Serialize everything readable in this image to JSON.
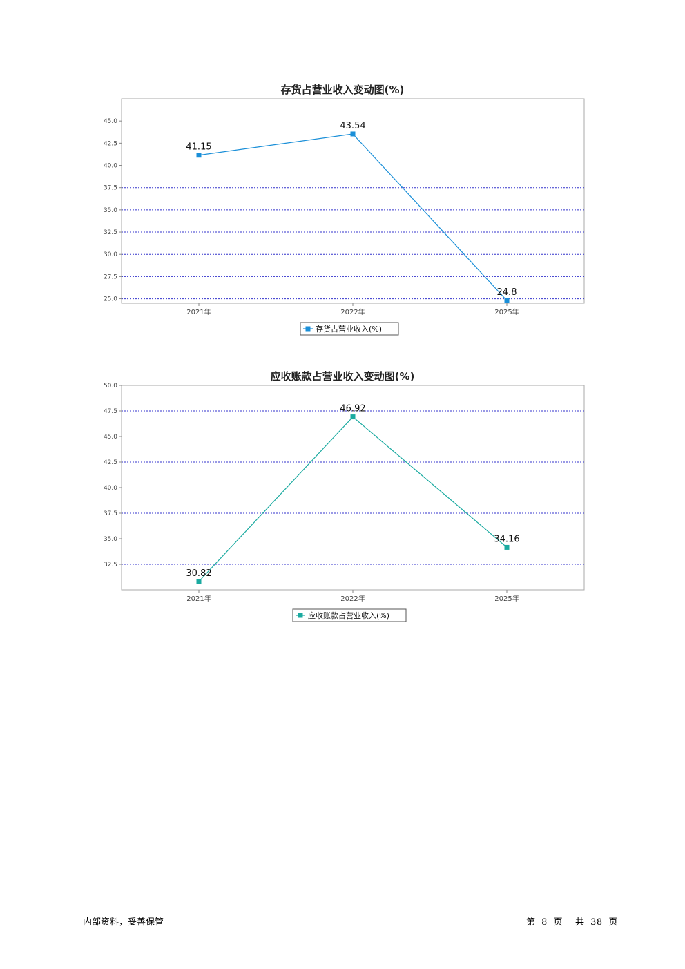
{
  "chart_data": [
    {
      "type": "line",
      "title": "存货占营业收入变动图(%)",
      "categories": [
        "2021年",
        "2022年",
        "2025年"
      ],
      "series": [
        {
          "name": "存货占营业收入(%)",
          "values": [
            41.15,
            43.54,
            24.8
          ],
          "labels": [
            "41.15",
            "43.54",
            "24.8"
          ],
          "color": "#1a8fd8"
        }
      ],
      "ylim": [
        24.5,
        47.5
      ],
      "yticks": [
        25.0,
        27.5,
        30.0,
        32.5,
        35.0,
        37.5,
        40.0,
        42.5,
        45.0
      ],
      "ytick_labels": [
        "25.0",
        "27.5",
        "30.0",
        "32.5",
        "35.0",
        "37.5",
        "40.0",
        "42.5",
        "45.0"
      ],
      "gridlines": [
        25.0,
        27.5,
        30.0,
        32.5,
        35.0,
        37.5
      ],
      "grid_color": "#3333cc",
      "legend": "bottom-center"
    },
    {
      "type": "line",
      "title": "应收账款占营业收入变动图(%)",
      "categories": [
        "2021年",
        "2022年",
        "2025年"
      ],
      "series": [
        {
          "name": "应收账款占营业收入(%)",
          "values": [
            30.82,
            46.92,
            34.16
          ],
          "labels": [
            "30.82",
            "46.92",
            "34.16"
          ],
          "color": "#1aaaa0"
        }
      ],
      "ylim": [
        30.0,
        50.0
      ],
      "yticks": [
        32.5,
        35.0,
        37.5,
        40.0,
        42.5,
        45.0,
        47.5,
        50.0
      ],
      "ytick_labels": [
        "32.5",
        "35.0",
        "37.5",
        "40.0",
        "42.5",
        "45.0",
        "47.5",
        "50.0"
      ],
      "gridlines": [
        32.5,
        37.5,
        42.5,
        47.5
      ],
      "grid_color": "#3333cc",
      "legend": "bottom-center"
    }
  ],
  "footer": {
    "left": "内部资料，妥善保管",
    "page_prefix": "第",
    "page_number": "8",
    "page_suffix": "页",
    "total_prefix": "共",
    "total_pages": "38",
    "total_suffix": "页"
  }
}
